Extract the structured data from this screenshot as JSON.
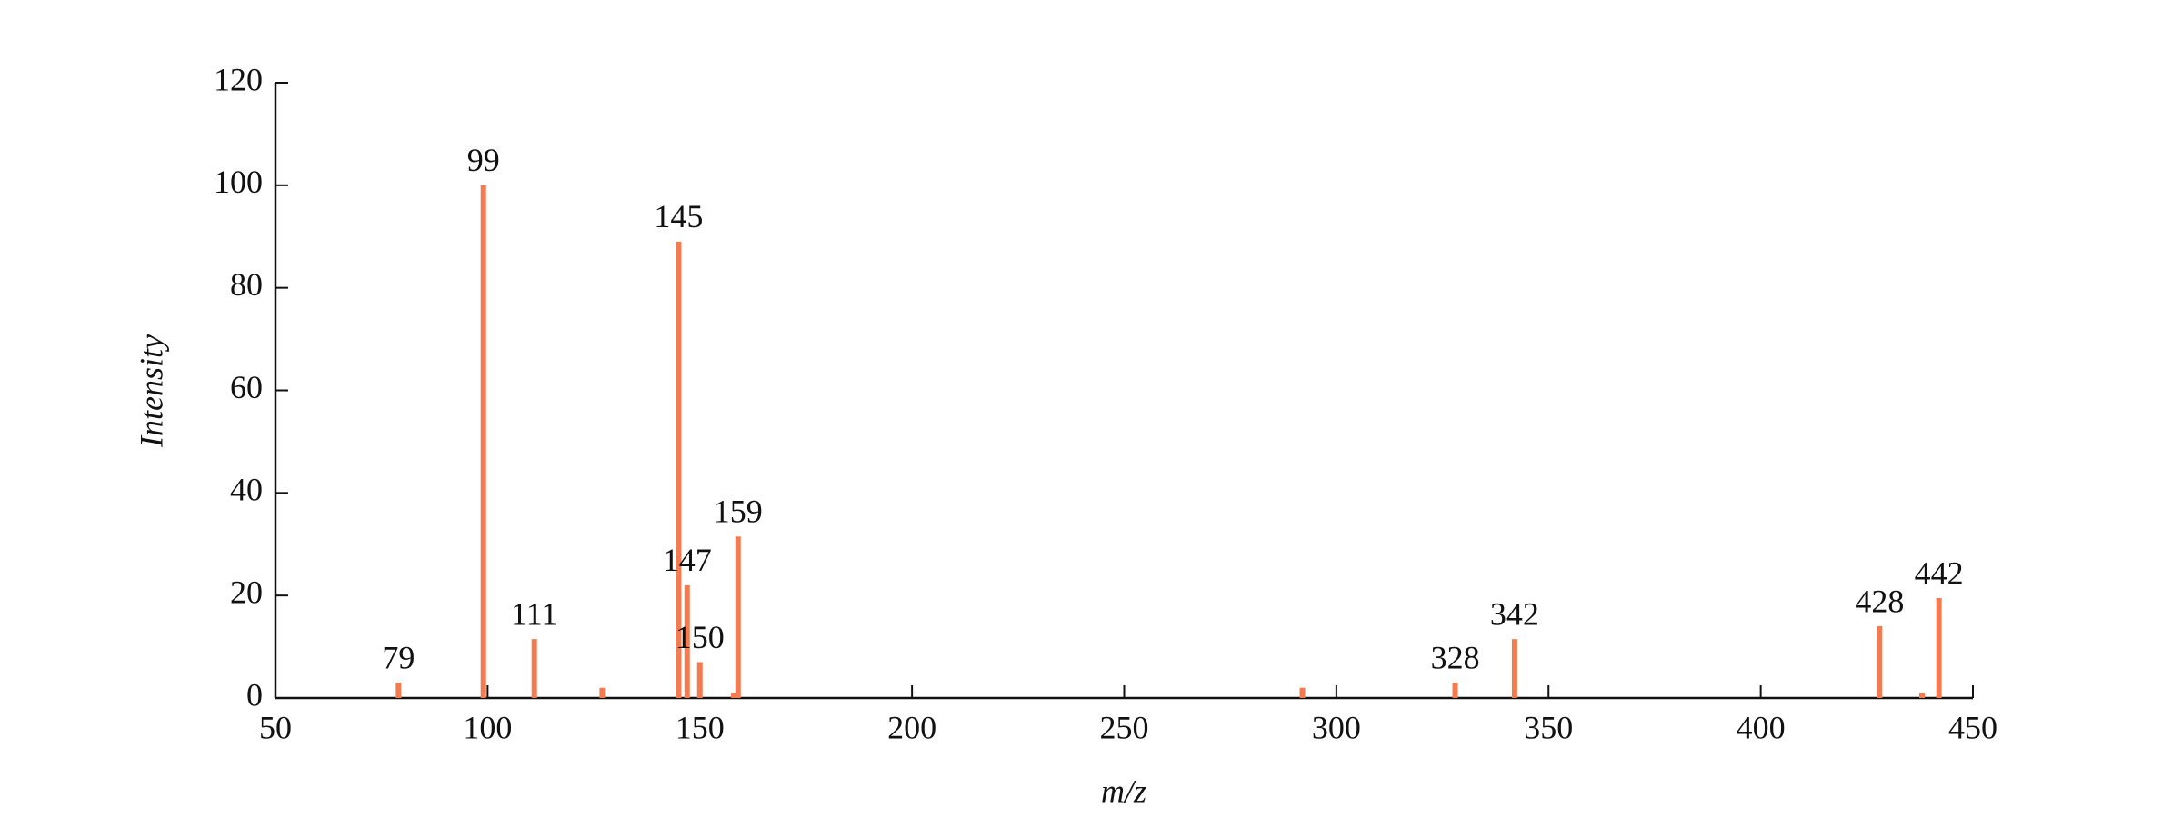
{
  "chart_data": {
    "type": "stem",
    "xlabel": "m/z",
    "ylabel": "Intensity",
    "x": [
      79,
      99,
      111,
      127,
      145,
      147,
      150,
      158,
      159,
      292,
      328,
      342,
      428,
      438,
      442
    ],
    "values": [
      3,
      100,
      11.5,
      2,
      89,
      22,
      7,
      1,
      31.5,
      2,
      3,
      11.5,
      14,
      1,
      19.5
    ],
    "labels": [
      "79",
      "99",
      "111",
      null,
      "145",
      "147",
      "150",
      null,
      "159",
      null,
      "328",
      "342",
      "428",
      null,
      "442"
    ],
    "color": "#f47a4f",
    "xlim": [
      50,
      450
    ],
    "xticks": [
      50,
      100,
      150,
      200,
      250,
      300,
      350,
      400,
      450
    ],
    "ylim": [
      0,
      120
    ],
    "yticks": [
      0,
      20,
      40,
      60,
      80,
      100,
      120
    ]
  }
}
